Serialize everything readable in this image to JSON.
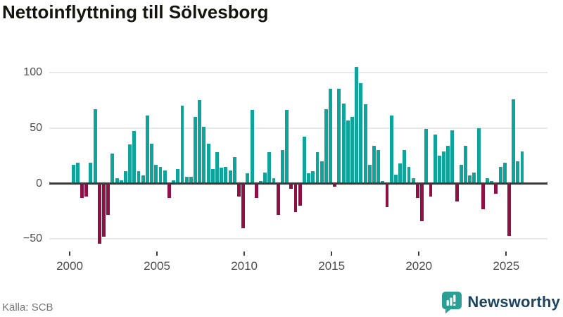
{
  "chart_data": {
    "type": "bar",
    "title": "Nettoinflyttning till Sölvesborg",
    "x_start": "2000 Q1",
    "x_frequency": "quarterly",
    "values": [
      17,
      19,
      -12,
      -11,
      19,
      67,
      -53,
      -47,
      -27,
      27,
      5,
      3,
      11,
      35,
      47,
      11,
      7,
      61,
      36,
      17,
      15,
      12,
      -12,
      3,
      13,
      70,
      6,
      6,
      60,
      75,
      51,
      36,
      13,
      28,
      14,
      15,
      12,
      24,
      -11,
      -39,
      9,
      66,
      -12,
      2,
      10,
      28,
      5,
      -27,
      30,
      66,
      -4,
      -25,
      -19,
      42,
      9,
      11,
      28,
      20,
      67,
      85,
      -2,
      85,
      72,
      57,
      60,
      105,
      90,
      71,
      17,
      34,
      30,
      2,
      -20,
      61,
      8,
      18,
      30,
      15,
      5,
      -12,
      -33,
      49,
      -11,
      44,
      25,
      29,
      34,
      48,
      -15,
      17,
      34,
      7,
      10,
      50,
      -22,
      5,
      2,
      -8,
      15,
      19,
      -46,
      76,
      20,
      29
    ],
    "y_ticks": [
      {
        "value": 100,
        "label": "100"
      },
      {
        "value": 50,
        "label": "50"
      },
      {
        "value": 0,
        "label": "0"
      },
      {
        "value": -50,
        "label": "−50"
      }
    ],
    "x_tick_labels": [
      "2000",
      "2005",
      "2010",
      "2015",
      "2020",
      "2025"
    ],
    "ylim": [
      -60,
      112
    ],
    "grid": true,
    "legend": "none",
    "positive_color": "#0ea49c",
    "negative_color": "#8e1044"
  },
  "footer": {
    "source": "Källa: SCB",
    "brand": "Newsworthy",
    "brand_text_color": "#1e455e",
    "brand_icon_color": "#2b9e96"
  }
}
